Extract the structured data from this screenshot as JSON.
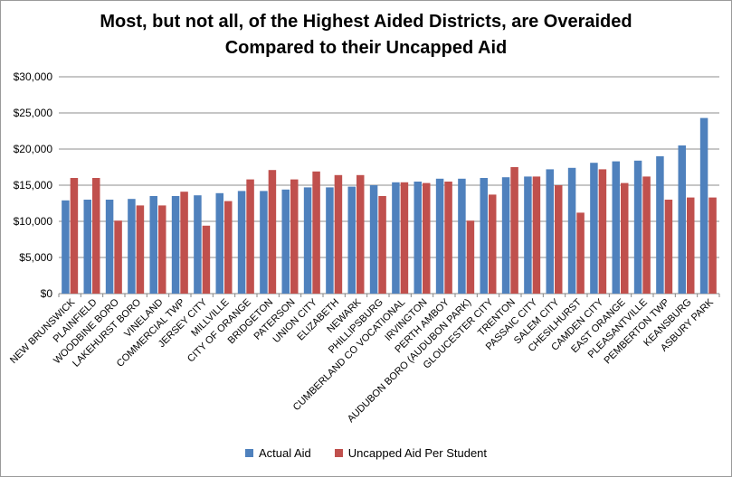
{
  "chart_data": {
    "type": "bar",
    "title_lines": [
      "Most, but not all, of the Highest Aided Districts, are Overaided",
      "Compared to their Uncapped Aid"
    ],
    "xlabel": "",
    "ylabel": "",
    "ylim": [
      0,
      30000
    ],
    "yticks": [
      0,
      5000,
      10000,
      15000,
      20000,
      25000,
      30000
    ],
    "ytick_labels": [
      "$0",
      "$5,000",
      "$10,000",
      "$15,000",
      "$20,000",
      "$25,000",
      "$30,000"
    ],
    "grid": true,
    "legend_position": "bottom",
    "categories": [
      "NEW BRUNSWICK",
      "PLAINFIELD",
      "WOODBINE BORO",
      "LAKEHURST BORO",
      "VINELAND",
      "COMMERCIAL TWP",
      "JERSEY CITY",
      "MILLVILLE",
      "CITY OF ORANGE",
      "BRIDGETON",
      "PATERSON",
      "UNION CITY",
      "ELIZABETH",
      "NEWARK",
      "PHILLIPSBURG",
      "CUMBERLAND CO VOCATIONAL",
      "IRVINGTON",
      "PERTH AMBOY",
      "AUDUBON BORO (AUDUBON PARK)",
      "GLOUCESTER CITY",
      "TRENTON",
      "PASSAIC CITY",
      "SALEM CITY",
      "CHESILHURST",
      "CAMDEN CITY",
      "EAST ORANGE",
      "PLEASANTVILLE",
      "PEMBERTON TWP",
      "KEANSBURG",
      "ASBURY PARK"
    ],
    "series": [
      {
        "name": "Actual Aid",
        "color": "#4f81bd",
        "values": [
          12900,
          13000,
          13000,
          13100,
          13500,
          13500,
          13600,
          13900,
          14200,
          14200,
          14400,
          14700,
          14700,
          14800,
          15000,
          15400,
          15500,
          15900,
          15900,
          16000,
          16100,
          16200,
          17200,
          17400,
          18100,
          18300,
          18400,
          19000,
          20500,
          24300
        ]
      },
      {
        "name": "Uncapped Aid Per Student",
        "color": "#c0504d",
        "values": [
          16000,
          16000,
          10100,
          12200,
          12200,
          14100,
          9400,
          12800,
          15800,
          17100,
          15800,
          16900,
          16400,
          16400,
          13500,
          15400,
          15300,
          15500,
          10100,
          13700,
          17500,
          16200,
          15000,
          11200,
          17200,
          15300,
          16200,
          13000,
          13300,
          13300
        ]
      }
    ]
  }
}
